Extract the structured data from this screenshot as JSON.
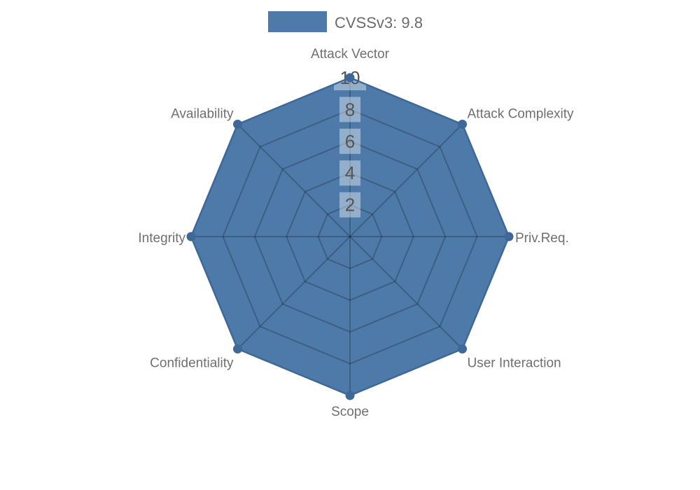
{
  "chart_data": {
    "type": "radar",
    "title": "",
    "legend": {
      "label": "CVSSv3: 9.8",
      "swatch_color": "#4d7aa8",
      "position": "top"
    },
    "categories": [
      "Attack Vector",
      "Attack Complexity",
      "Priv.Req.",
      "User Interaction",
      "Scope",
      "Confidentiality",
      "Integrity",
      "Availability"
    ],
    "series": [
      {
        "name": "CVSSv3: 9.8",
        "values": [
          10,
          10,
          10,
          10,
          10,
          10,
          10,
          10
        ]
      }
    ],
    "ticks": [
      2,
      4,
      6,
      8,
      10
    ],
    "rmin": 0,
    "rmax": 10,
    "grid": true,
    "grid_shape": "polygon",
    "colors": {
      "fill": "#4d7aa8",
      "border": "#3d6897",
      "marker": "#3d6897",
      "grid_line": "rgba(0,0,0,0.22)",
      "tick_text": "#555555",
      "tick_backdrop": "rgba(255,255,255,0.40)",
      "axis_label": "#6f6f6f",
      "legend_text": "#6b6b6b",
      "background": "#ffffff"
    }
  }
}
